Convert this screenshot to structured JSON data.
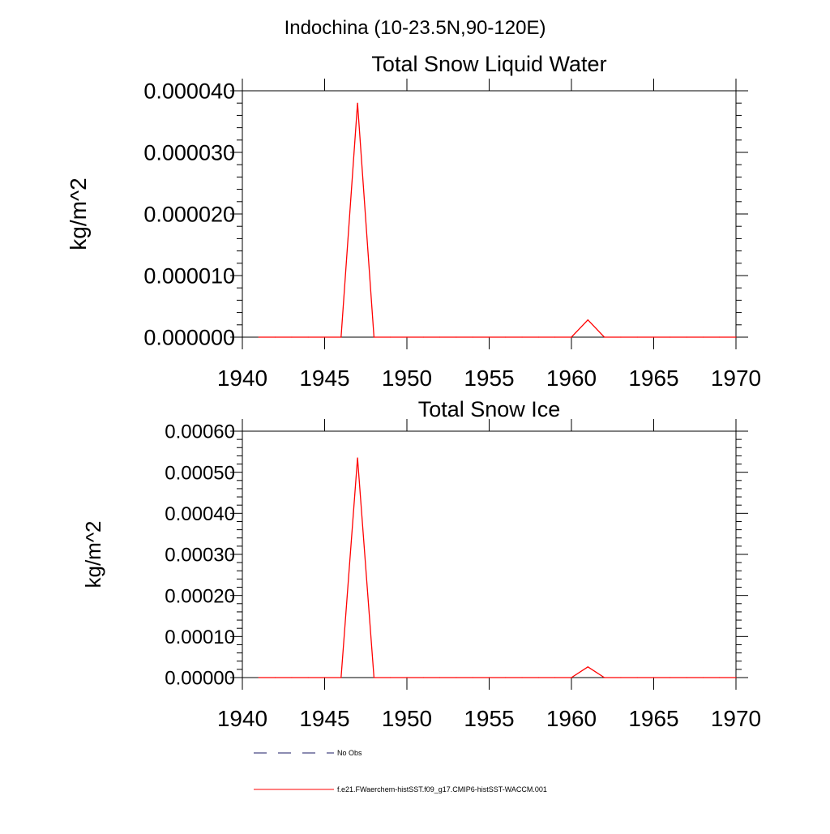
{
  "figure": {
    "title": "Indochina (10-23.5N,90-120E)"
  },
  "chart_data": [
    {
      "type": "line",
      "title": "Total Snow Liquid Water",
      "xlabel": "",
      "ylabel": "kg/m^2",
      "xlim": [
        1940,
        1970
      ],
      "ylim": [
        0,
        4e-05
      ],
      "xticks": [
        1940,
        1945,
        1950,
        1955,
        1960,
        1965,
        1970
      ],
      "xtick_labels": [
        "1940",
        "1945",
        "1950",
        "1955",
        "1960",
        "1965",
        "1970"
      ],
      "yticks": [
        0,
        1e-05,
        2e-05,
        3e-05,
        4e-05
      ],
      "ytick_labels": [
        "0.000000",
        "0.000010",
        "0.000020",
        "0.000030",
        "0.000040"
      ],
      "grid": false,
      "series": [
        {
          "name": "f.e21.FWaerchem-histSST.f09_g17.CMIP6-histSST-WACCM.001",
          "color": "#ff0000",
          "x": [
            1941,
            1942,
            1943,
            1944,
            1945,
            1946,
            1947,
            1948,
            1949,
            1950,
            1951,
            1952,
            1953,
            1954,
            1955,
            1956,
            1957,
            1958,
            1959,
            1960,
            1961,
            1962,
            1963,
            1964,
            1965,
            1966,
            1967,
            1968,
            1969,
            1970
          ],
          "y": [
            0,
            0,
            0,
            0,
            0,
            0,
            3.8e-05,
            0,
            0,
            0,
            0,
            0,
            0,
            0,
            0,
            0,
            0,
            0,
            0,
            0,
            2.8e-06,
            0,
            0,
            0,
            0,
            0,
            0,
            0,
            0,
            0
          ]
        }
      ]
    },
    {
      "type": "line",
      "title": "Total Snow Ice",
      "xlabel": "",
      "ylabel": "kg/m^2",
      "xlim": [
        1940,
        1970
      ],
      "ylim": [
        0,
        0.0006
      ],
      "xticks": [
        1940,
        1945,
        1950,
        1955,
        1960,
        1965,
        1970
      ],
      "xtick_labels": [
        "1940",
        "1945",
        "1950",
        "1955",
        "1960",
        "1965",
        "1970"
      ],
      "yticks": [
        0,
        0.0001,
        0.0002,
        0.0003,
        0.0004,
        0.0005,
        0.0006
      ],
      "ytick_labels": [
        "0.00000",
        "0.00010",
        "0.00020",
        "0.00030",
        "0.00040",
        "0.00050",
        "0.00060"
      ],
      "grid": false,
      "series": [
        {
          "name": "f.e21.FWaerchem-histSST.f09_g17.CMIP6-histSST-WACCM.001",
          "color": "#ff0000",
          "x": [
            1941,
            1942,
            1943,
            1944,
            1945,
            1946,
            1947,
            1948,
            1949,
            1950,
            1951,
            1952,
            1953,
            1954,
            1955,
            1956,
            1957,
            1958,
            1959,
            1960,
            1961,
            1962,
            1963,
            1964,
            1965,
            1966,
            1967,
            1968,
            1969,
            1970
          ],
          "y": [
            0,
            0,
            0,
            0,
            0,
            0,
            0.000535,
            0,
            0,
            0,
            0,
            0,
            0,
            0,
            0,
            0,
            0,
            0,
            0,
            0,
            2.6e-05,
            0,
            0,
            0,
            0,
            0,
            0,
            0,
            0,
            0
          ]
        }
      ]
    }
  ],
  "legend": {
    "placement": "bottom-left",
    "entries": [
      {
        "label": "No Obs",
        "color": "#1a1a66",
        "style": "dashed"
      },
      {
        "label": "f.e21.FWaerchem-histSST.f09_g17.CMIP6-histSST-WACCM.001",
        "color": "#ff0000",
        "style": "solid"
      }
    ]
  }
}
